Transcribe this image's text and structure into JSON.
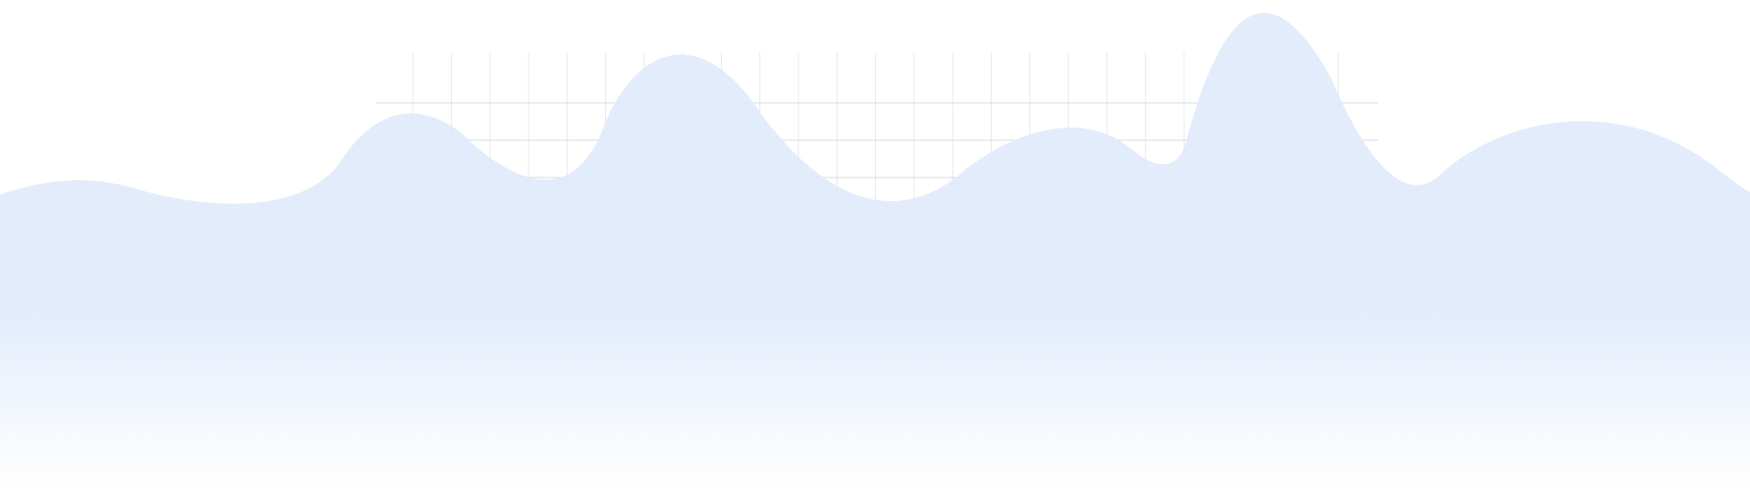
{
  "background": {
    "page_color": "#ffffff",
    "wave_fill_color": "#dfeafb",
    "wave_fade_color": "#ffffff",
    "grid_line_color": "#c7ccd3"
  }
}
